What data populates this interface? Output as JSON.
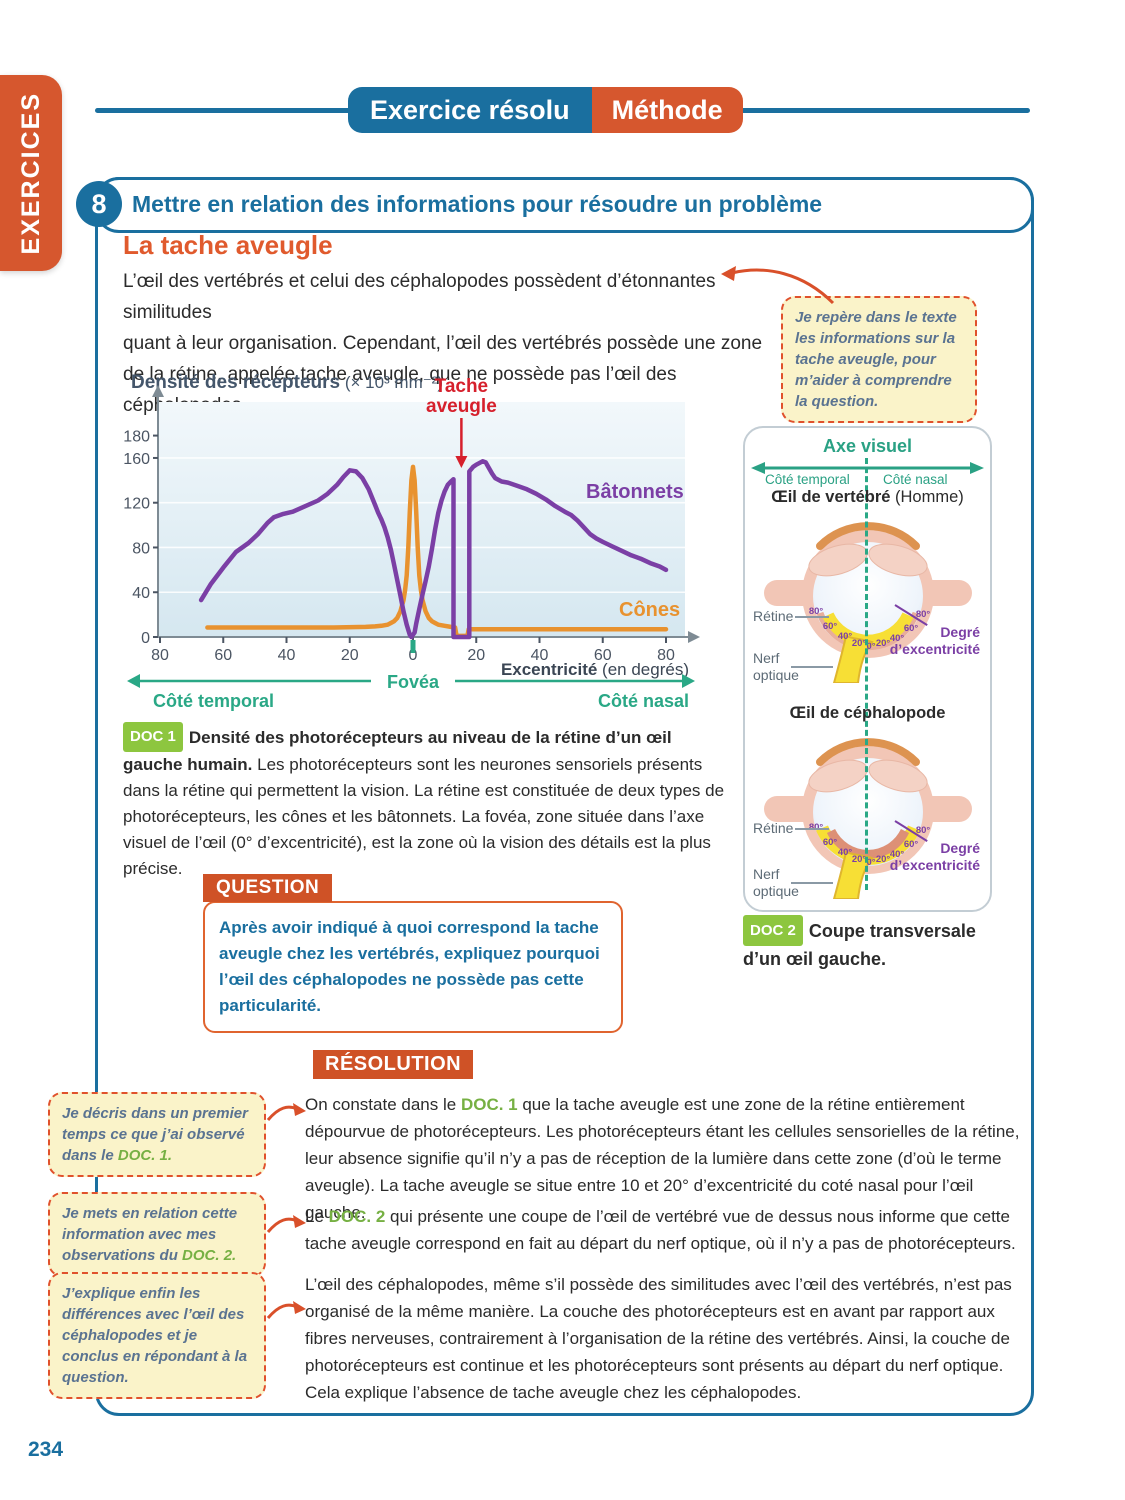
{
  "page": {
    "number": "234"
  },
  "sidebar_tab": "EXERCICES",
  "header": {
    "left_label": "Exercice résolu",
    "right_label": "Méthode"
  },
  "exercise": {
    "number": "8",
    "skill_title": "Mettre en relation des informations pour résoudre un problème",
    "title": "La tache aveugle",
    "intro_lines": [
      "L’œil des vertébrés et celui des céphalopodes possèdent d’étonnantes similitudes",
      "quant à leur organisation. Cependant, l’œil des vertébrés possède une zone",
      "de la rétine, appelée tache aveugle, que ne possède pas l’œil des céphalopodes."
    ]
  },
  "margin_note_top": "Je repère dans le texte les informations sur la tache aveugle, pour m’aider à comprendre la question.",
  "chart_data": {
    "type": "line",
    "title": "Densité des récepteurs",
    "title_unit": " (× 10³ mm⁻²)",
    "xlabel_bold": "Excentricité",
    "xlabel_unit": " (en degrés)",
    "x_ticks": [
      -80,
      -60,
      -40,
      -20,
      0,
      20,
      40,
      60,
      80
    ],
    "x_tick_labels": [
      "80",
      "60",
      "40",
      "20",
      "0",
      "20",
      "40",
      "60",
      "80"
    ],
    "y_ticks": [
      0,
      40,
      80,
      120,
      160,
      180
    ],
    "grid_y": [
      40,
      80,
      120,
      160
    ],
    "ylim": [
      0,
      190
    ],
    "xlim": [
      -84,
      88
    ],
    "annotations": {
      "blind_spot_line1": "Tache",
      "blind_spot_line2": "aveugle",
      "blind_spot_x": 15.3,
      "fovea": "Fovéa",
      "temporal": "Côté temporal",
      "nasal": "Côté nasal"
    },
    "series": [
      {
        "name": "Bâtonnets",
        "color": "#7b3fa5",
        "points": [
          [
            -67,
            33
          ],
          [
            -64,
            47
          ],
          [
            -60,
            62
          ],
          [
            -56,
            76
          ],
          [
            -52,
            84
          ],
          [
            -49,
            92
          ],
          [
            -46,
            102
          ],
          [
            -44,
            107
          ],
          [
            -41,
            110
          ],
          [
            -38,
            112
          ],
          [
            -34,
            117
          ],
          [
            -30,
            122
          ],
          [
            -27,
            128
          ],
          [
            -24,
            136
          ],
          [
            -22,
            143
          ],
          [
            -20,
            149
          ],
          [
            -18,
            148
          ],
          [
            -16,
            142
          ],
          [
            -14,
            132
          ],
          [
            -12,
            118
          ],
          [
            -11,
            111
          ],
          [
            -10,
            105
          ],
          [
            -9,
            98
          ],
          [
            -8,
            89
          ],
          [
            -7,
            78
          ],
          [
            -6,
            65
          ],
          [
            -5,
            51
          ],
          [
            -4,
            37
          ],
          [
            -3,
            23
          ],
          [
            -2,
            11
          ],
          [
            -1,
            2
          ],
          [
            -0.5,
            0
          ],
          [
            0.5,
            4
          ],
          [
            1,
            12
          ],
          [
            2,
            25
          ],
          [
            3,
            38
          ],
          [
            4,
            50
          ],
          [
            5,
            63
          ],
          [
            6,
            79
          ],
          [
            7,
            96
          ],
          [
            8,
            111
          ],
          [
            9,
            122
          ],
          [
            10,
            130
          ],
          [
            11,
            136
          ],
          [
            12,
            139
          ],
          [
            12.8,
            141
          ],
          [
            12.8,
            0
          ],
          [
            17.8,
            0
          ],
          [
            17.8,
            148
          ],
          [
            19,
            152
          ],
          [
            20,
            154
          ],
          [
            22,
            157
          ],
          [
            23,
            156
          ],
          [
            24,
            151
          ],
          [
            25,
            146
          ],
          [
            26,
            142
          ],
          [
            28,
            139
          ],
          [
            30,
            138
          ],
          [
            33,
            135
          ],
          [
            36,
            132
          ],
          [
            39,
            128
          ],
          [
            42,
            123
          ],
          [
            45,
            117
          ],
          [
            48,
            112
          ],
          [
            50,
            109
          ],
          [
            52,
            104
          ],
          [
            54,
            98
          ],
          [
            56,
            92
          ],
          [
            58,
            88
          ],
          [
            60,
            85
          ],
          [
            63,
            81
          ],
          [
            66,
            77
          ],
          [
            69,
            73
          ],
          [
            72,
            70
          ],
          [
            75,
            66
          ],
          [
            78,
            63
          ],
          [
            80,
            60
          ]
        ]
      },
      {
        "name": "Cônes",
        "color": "#e8922f",
        "points": [
          [
            -65,
            8.5
          ],
          [
            -45,
            8.5
          ],
          [
            -25,
            8.5
          ],
          [
            -15,
            9
          ],
          [
            -12,
            9.5
          ],
          [
            -10,
            10
          ],
          [
            -8,
            11
          ],
          [
            -7,
            12.5
          ],
          [
            -6,
            14
          ],
          [
            -5,
            17
          ],
          [
            -4,
            23
          ],
          [
            -3,
            33
          ],
          [
            -2.5,
            42
          ],
          [
            -2,
            55
          ],
          [
            -1.5,
            80
          ],
          [
            -1,
            112
          ],
          [
            -0.5,
            140
          ],
          [
            0,
            152
          ],
          [
            0.5,
            140
          ],
          [
            1,
            112
          ],
          [
            1.5,
            80
          ],
          [
            2,
            55
          ],
          [
            2.5,
            42
          ],
          [
            3,
            33
          ],
          [
            4,
            23
          ],
          [
            5,
            17
          ],
          [
            6,
            14
          ],
          [
            7,
            12.5
          ],
          [
            8,
            11
          ],
          [
            10,
            10
          ],
          [
            12,
            9
          ],
          [
            13.3,
            8.5
          ],
          [
            13.8,
            1
          ],
          [
            17.2,
            1
          ],
          [
            17.6,
            7
          ],
          [
            20,
            7
          ],
          [
            40,
            7
          ],
          [
            60,
            7
          ],
          [
            80,
            7
          ]
        ]
      }
    ]
  },
  "doc1": {
    "badge": "DOC 1",
    "bold": "Densité des photorécepteurs au niveau de la rétine d’un œil gauche humain.",
    "text": " Les photorécepteurs sont les neurones sensoriels présents dans la rétine qui permettent la vision. La rétine est constituée de deux types de photorécepteurs, les cônes et les bâtonnets. La fovéa, zone située dans l’axe visuel de l’œil (0° d’excentricité), est la zone où la vision des détails est la plus précise."
  },
  "question": {
    "badge": "QUESTION",
    "text": "Après avoir indiqué à quoi correspond la tache aveugle chez les vertébrés, expliquez pourquoi l’œil des céphalopodes ne possède pas cette particularité."
  },
  "diagram_panel": {
    "axis_label": "Axe visuel",
    "left_label": "Côté temporal",
    "right_label": "Côté nasal",
    "retina_label": "Rétine",
    "nerve_label_1": "Nerf",
    "nerve_label_2": "optique",
    "degree_label_1": "Degré",
    "degree_label_2": "d’excentricité",
    "degrees": [
      "80°",
      "60°",
      "40°",
      "20°",
      "0°",
      "20°",
      "40°",
      "60°",
      "80°"
    ],
    "eye1": {
      "title_bold": "Œil de vertébré",
      "title_normal": " (Homme)"
    },
    "eye2": {
      "title_bold": "Œil de céphalopode",
      "title_normal": ""
    }
  },
  "doc2": {
    "badge": "DOC 2",
    "bold": "Coupe transversale d’un œil gauche."
  },
  "resolution": {
    "badge": "RÉSOLUTION",
    "paragraphs": [
      {
        "pre": "On constate dans le ",
        "doc": "DOC. 1",
        "post": " que la tache aveugle est une zone de la rétine entièrement dépourvue de photorécepteurs. Les photorécepteurs étant les cellules sensorielles de la rétine, leur absence signifie qu’il n’y a pas de réception de la lumière dans cette zone (d’où le terme aveugle). La tache aveugle se situe entre 10 et 20° d’excentricité du coté nasal pour l’œil gauche."
      },
      {
        "pre": "Le ",
        "doc": "DOC. 2",
        "post": " qui présente une coupe de l’œil de vertébré vue de dessus nous informe que cette tache aveugle correspond en fait au départ du nerf optique, où il n’y a pas de photorécepteurs."
      },
      {
        "pre": "",
        "doc": "",
        "post": "L’œil des céphalopodes, même s’il possède des similitudes avec l’œil des vertébrés, n’est pas organisé de la même manière. La couche des photorécepteurs est en avant par rapport aux fibres nerveuses, contrairement à l’organisation de la rétine des vertébrés. Ainsi, la couche de photorécepteurs est continue et les photorécepteurs sont présents au départ du nerf optique. Cela explique l’absence de tache aveugle chez les céphalopodes."
      }
    ]
  },
  "method_notes": [
    {
      "pre": "Je décris dans un premier temps ce que j’ai observé dans le ",
      "doc": "DOC. 1."
    },
    {
      "pre": "Je mets en relation cette information avec mes observations du ",
      "doc": "DOC. 2."
    },
    {
      "pre": "J’explique enfin les différences avec l’œil des céphalopodes et je conclus en répondant à la question.",
      "doc": ""
    }
  ],
  "colors": {
    "blue": "#1a6f9f",
    "orange": "#d6572e",
    "badge_orange": "#cf5226",
    "heading_orange": "#e05a2d",
    "green_badge": "#8dc63f",
    "green_ref": "#76b043",
    "teal": "#2aa184",
    "purple": "#7b3fa5",
    "curve_orange": "#e8922f",
    "red": "#d6202c",
    "note_bg": "#faf3c9",
    "note_text": "#5a7391"
  }
}
